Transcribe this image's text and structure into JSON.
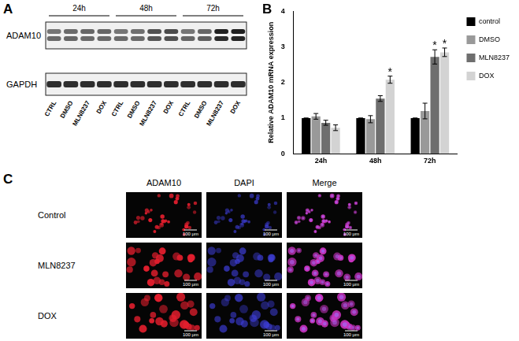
{
  "chart_data": {
    "type": "bar",
    "y_label": "Relative ADAM10 mRNA expression",
    "categories": [
      "24h",
      "48h",
      "72h"
    ],
    "series": [
      {
        "name": "control",
        "color": "#000000",
        "values": [
          1,
          1,
          1
        ],
        "errors": [
          0,
          0,
          0
        ],
        "annotations": [
          null,
          null,
          null
        ]
      },
      {
        "name": "DMSO",
        "color": "#999999",
        "values": [
          1.05,
          0.97,
          1.2
        ],
        "errors": [
          0.08,
          0.1,
          0.22
        ],
        "annotations": [
          null,
          null,
          null
        ]
      },
      {
        "name": "MLN8237",
        "color": "#6e6e6e",
        "values": [
          0.87,
          1.55,
          2.72
        ],
        "errors": [
          0.07,
          0.08,
          0.2
        ],
        "annotations": [
          null,
          null,
          "*"
        ]
      },
      {
        "name": "DOX",
        "color": "#d3d3d3",
        "values": [
          0.73,
          2.08,
          2.85
        ],
        "errors": [
          0.08,
          0.1,
          0.12
        ],
        "annotations": [
          null,
          "*",
          "*"
        ]
      }
    ],
    "ylim": [
      0,
      4
    ],
    "yticks": [
      0,
      1,
      2,
      3,
      4
    ],
    "grid": false,
    "legend": "right"
  },
  "panel_labels": [
    "A",
    "B",
    "C"
  ],
  "western_blot": {
    "times": [
      "24h",
      "48h",
      "72h"
    ],
    "proteins": [
      "ADAM10",
      "GAPDH"
    ],
    "lanes": [
      "CTRL",
      "DMSO",
      "MLN8237",
      "DOX"
    ]
  },
  "immunofluorescence": {
    "channels": [
      "ADAM10",
      "DAPI",
      "Merge"
    ],
    "conditions": [
      "Control",
      "MLN8237",
      "DOX"
    ],
    "scale_bar": "100 μm"
  }
}
